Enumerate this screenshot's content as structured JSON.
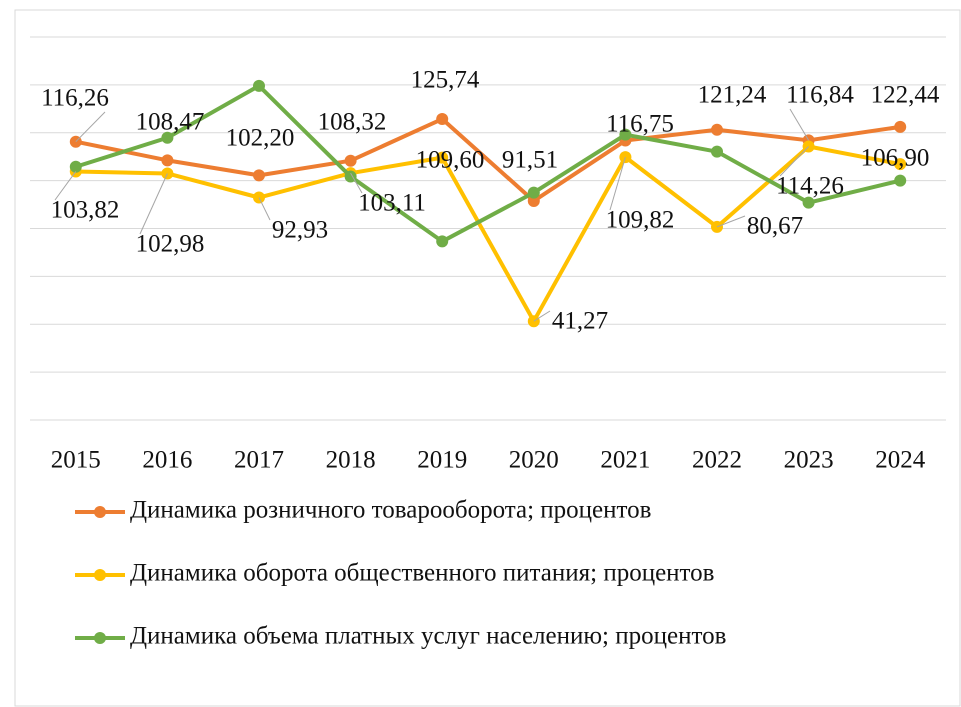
{
  "chart_data": {
    "type": "line",
    "categories": [
      "2015",
      "2016",
      "2017",
      "2018",
      "2019",
      "2020",
      "2021",
      "2022",
      "2023",
      "2024"
    ],
    "series": [
      {
        "name": "Динамика розничного товарооборота; процентов",
        "color": "#ED7D31",
        "values": [
          116.26,
          108.47,
          102.2,
          108.32,
          125.74,
          91.51,
          116.75,
          121.24,
          116.84,
          122.44
        ],
        "value_labels": [
          "116,26",
          "108,47",
          "102,20",
          "108,32",
          "125,74",
          "91,51",
          "116,75",
          "121,24",
          "116,84",
          "122,44"
        ]
      },
      {
        "name": "Динамика оборота общественного питания; процентов",
        "color": "#FFC000",
        "values": [
          103.82,
          102.98,
          92.93,
          103.11,
          109.6,
          41.27,
          109.82,
          80.67,
          114.26,
          106.9
        ],
        "value_labels": [
          "103,82",
          "102,98",
          "92,93",
          "103,11",
          "109,60",
          "41,27",
          "109,82",
          "80,67",
          "114,26",
          "106,90"
        ]
      },
      {
        "name": "Динамика объема платных услуг населению; процентов",
        "color": "#70AD47",
        "values": [
          105.8,
          117.9,
          139.6,
          101.7,
          74.6,
          95.0,
          119.2,
          112.1,
          90.8,
          100.0
        ]
      }
    ],
    "ylim": [
      0,
      160
    ],
    "yticks": [
      0,
      20,
      40,
      60,
      80,
      100,
      120,
      140,
      160
    ],
    "grid": true
  }
}
